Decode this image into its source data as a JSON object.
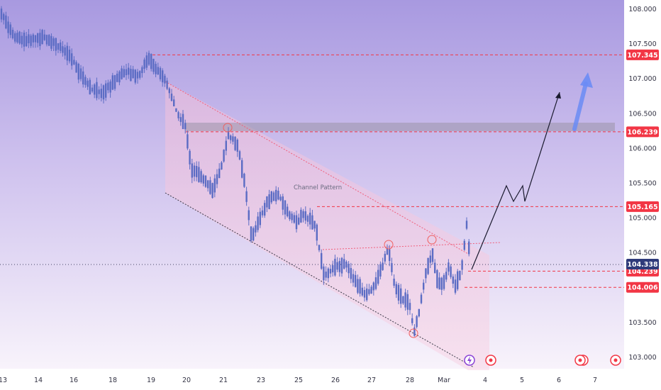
{
  "chart_data": {
    "type": "candlestick",
    "title": "",
    "annotation": "Channel Pattern",
    "y_axis": {
      "ticks": [
        "108.000",
        "107.500",
        "107.000",
        "106.500",
        "106.000",
        "105.500",
        "105.000",
        "104.500",
        "104.000",
        "103.500",
        "103.000"
      ],
      "tick_values": [
        108.0,
        107.5,
        107.0,
        106.5,
        106.0,
        105.5,
        105.0,
        104.5,
        104.0,
        103.5,
        103.0
      ]
    },
    "x_axis": {
      "ticks": [
        "13",
        "14",
        "16",
        "18",
        "19",
        "20",
        "21",
        "23",
        "25",
        "26",
        "27",
        "28",
        "Mar",
        "4",
        "5",
        "6",
        "7"
      ]
    },
    "price_levels": [
      {
        "label": "107.345",
        "value": 107.345,
        "color": "#f23645"
      },
      {
        "label": "106.239",
        "value": 106.239,
        "color": "#f23645"
      },
      {
        "label": "105.165",
        "value": 105.165,
        "color": "#f23645"
      },
      {
        "label": "104.239",
        "value": 104.239,
        "color": "#f23645"
      },
      {
        "label": "104.006",
        "value": 104.006,
        "color": "#f23645"
      }
    ],
    "current_price": {
      "label": "104.338",
      "value": 104.338,
      "color": "#2e3a7a"
    },
    "resistance_zone": [
      106.239,
      106.36
    ],
    "projection_path": [
      [
        104.2,
        "Mar"
      ],
      [
        105.5,
        "4-5"
      ],
      [
        105.25,
        "5"
      ],
      [
        106.8,
        "6"
      ]
    ],
    "candle_color": "#5b6cc4",
    "colors": {
      "background_top": "#a899e0",
      "background_bottom": "#f6f1fa",
      "level_line": "#f23645",
      "arrow": "#6b8cf5",
      "channel_fill": "#f5c4dc"
    }
  },
  "events": [
    {
      "icon": "lightning-icon",
      "color": "#8a43d6"
    },
    {
      "icon": "event-dot-icon",
      "color": "#f23645"
    },
    {
      "icon": "event-multi-icon",
      "color": "#f23645"
    },
    {
      "icon": "event-dot-icon",
      "color": "#f23645"
    }
  ]
}
